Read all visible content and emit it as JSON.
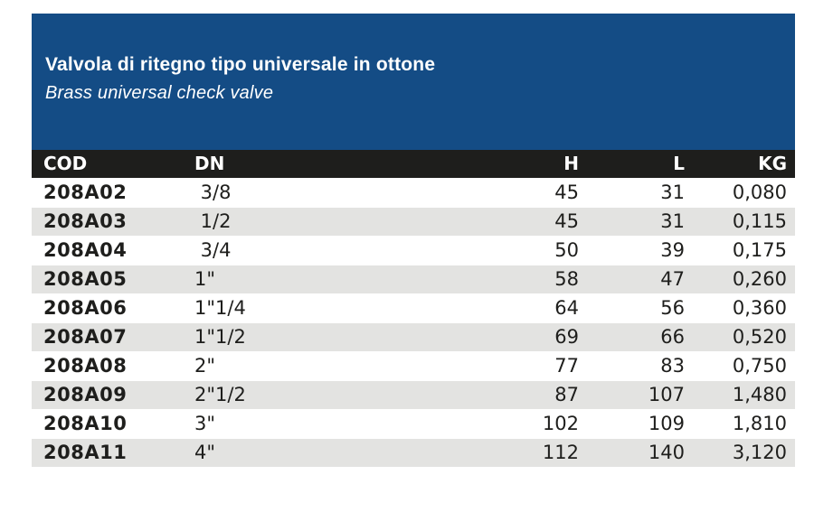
{
  "panel": {
    "title": "Valvola di ritegno tipo universale in ottone",
    "subtitle": "Brass universal check valve",
    "background_color": "#144c85",
    "text_color": "#ffffff"
  },
  "table": {
    "header": {
      "cod": "COD",
      "dn": "DN",
      "h": "H",
      "l": "L",
      "kg": "KG"
    },
    "header_background": "#1e1e1c",
    "header_text_color": "#ffffff",
    "stripe_color": "#e3e3e1",
    "row_color": "#ffffff",
    "text_color": "#1e1e1c",
    "rows": [
      {
        "cod": "208A02",
        "dn": " 3/8",
        "h": "45",
        "l": "31",
        "kg": "0,080"
      },
      {
        "cod": "208A03",
        "dn": " 1/2",
        "h": "45",
        "l": "31",
        "kg": "0,115"
      },
      {
        "cod": "208A04",
        "dn": " 3/4",
        "h": "50",
        "l": "39",
        "kg": "0,175"
      },
      {
        "cod": "208A05",
        "dn": "1\"",
        "h": "58",
        "l": "47",
        "kg": "0,260"
      },
      {
        "cod": "208A06",
        "dn": "1\"1/4",
        "h": "64",
        "l": "56",
        "kg": "0,360"
      },
      {
        "cod": "208A07",
        "dn": "1\"1/2",
        "h": "69",
        "l": "66",
        "kg": "0,520"
      },
      {
        "cod": "208A08",
        "dn": "2\"",
        "h": "77",
        "l": "83",
        "kg": "0,750"
      },
      {
        "cod": "208A09",
        "dn": "2\"1/2",
        "h": "87",
        "l": "107",
        "kg": "1,480"
      },
      {
        "cod": "208A10",
        "dn": "3\"",
        "h": "102",
        "l": "109",
        "kg": "1,810"
      },
      {
        "cod": "208A11",
        "dn": "4\"",
        "h": "112",
        "l": "140",
        "kg": "3,120"
      }
    ]
  }
}
